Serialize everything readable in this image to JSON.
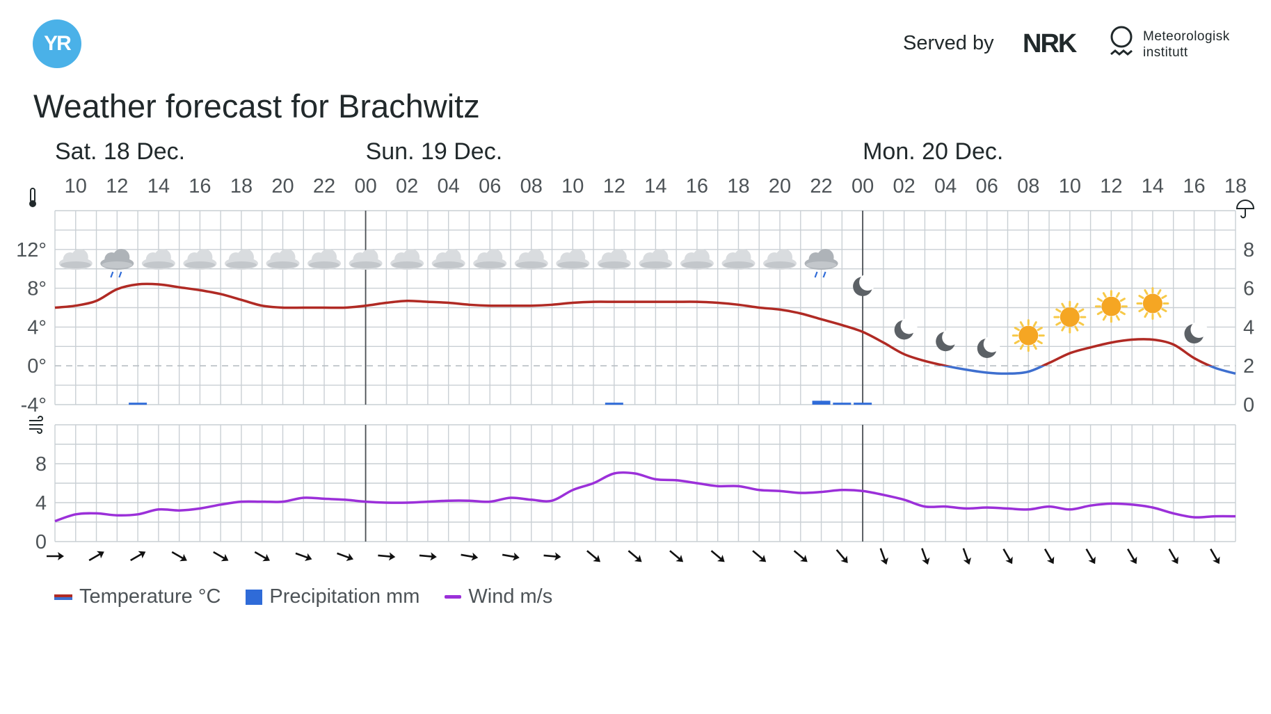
{
  "header": {
    "logo_text": "YR",
    "served_by": "Served by",
    "nrk_logo": "NRK",
    "met_logo": [
      "Meteorologisk",
      "institutt"
    ],
    "title": "Weather forecast for Brachwitz"
  },
  "chart_data": {
    "type": "line",
    "start_hour": 9,
    "end_hour": 66,
    "days": [
      {
        "label": "Sat. 18 Dec.",
        "hour": 9
      },
      {
        "label": "Sun. 19 Dec.",
        "hour": 24
      },
      {
        "label": "Mon. 20 Dec.",
        "hour": 48
      }
    ],
    "hour_ticks": [
      "10",
      "12",
      "14",
      "16",
      "18",
      "20",
      "22",
      "00",
      "02",
      "04",
      "06",
      "08",
      "10",
      "12",
      "14",
      "16",
      "18",
      "20",
      "22",
      "00",
      "02",
      "04",
      "06",
      "08",
      "10",
      "12",
      "14",
      "16",
      "18"
    ],
    "temperature": {
      "name": "Temperature °C",
      "ylim": [
        -4,
        16
      ],
      "yticks": [
        "12°",
        "8°",
        "4°",
        "0°",
        "-4°"
      ],
      "colors": {
        "above_zero": "#b02a24",
        "below_zero": "#3e6fcf"
      },
      "points": [
        [
          9,
          6.0
        ],
        [
          10,
          6.2
        ],
        [
          11,
          6.7
        ],
        [
          12,
          7.9
        ],
        [
          13,
          8.4
        ],
        [
          14,
          8.4
        ],
        [
          15,
          8.1
        ],
        [
          16,
          7.8
        ],
        [
          17,
          7.4
        ],
        [
          18,
          6.8
        ],
        [
          19,
          6.2
        ],
        [
          20,
          6.0
        ],
        [
          21,
          6.0
        ],
        [
          22,
          6.0
        ],
        [
          23,
          6.0
        ],
        [
          24,
          6.2
        ],
        [
          25,
          6.5
        ],
        [
          26,
          6.7
        ],
        [
          27,
          6.6
        ],
        [
          28,
          6.5
        ],
        [
          29,
          6.3
        ],
        [
          30,
          6.2
        ],
        [
          31,
          6.2
        ],
        [
          32,
          6.2
        ],
        [
          33,
          6.3
        ],
        [
          34,
          6.5
        ],
        [
          35,
          6.6
        ],
        [
          36,
          6.6
        ],
        [
          37,
          6.6
        ],
        [
          38,
          6.6
        ],
        [
          39,
          6.6
        ],
        [
          40,
          6.6
        ],
        [
          41,
          6.5
        ],
        [
          42,
          6.3
        ],
        [
          43,
          6.0
        ],
        [
          44,
          5.8
        ],
        [
          45,
          5.4
        ],
        [
          46,
          4.8
        ],
        [
          47,
          4.2
        ],
        [
          48,
          3.5
        ],
        [
          49,
          2.4
        ],
        [
          50,
          1.2
        ],
        [
          51,
          0.5
        ],
        [
          52,
          0.0
        ],
        [
          53,
          -0.4
        ],
        [
          54,
          -0.7
        ],
        [
          55,
          -0.8
        ],
        [
          56,
          -0.6
        ],
        [
          57,
          0.3
        ],
        [
          58,
          1.3
        ],
        [
          59,
          1.9
        ],
        [
          60,
          2.4
        ],
        [
          61,
          2.7
        ],
        [
          62,
          2.7
        ],
        [
          63,
          2.2
        ],
        [
          64,
          0.8
        ],
        [
          65,
          -0.2
        ],
        [
          66,
          -0.8
        ]
      ]
    },
    "precipitation": {
      "name": "Precipitation mm",
      "ylim": [
        0,
        10
      ],
      "yticks": [
        "8",
        "6",
        "4",
        "2",
        "0"
      ],
      "color": "#2f6bd8",
      "bars": [
        {
          "hour": 13,
          "amount": 0.1
        },
        {
          "hour": 36,
          "amount": 0.1
        },
        {
          "hour": 46,
          "amount": 0.2
        },
        {
          "hour": 47,
          "amount": 0.1
        },
        {
          "hour": 48,
          "amount": 0.1
        }
      ]
    },
    "wind": {
      "name": "Wind m/s",
      "ylim": [
        0,
        12
      ],
      "yticks": [
        "8",
        "4",
        "0"
      ],
      "color": "#9b30d9",
      "points": [
        [
          9,
          2.1
        ],
        [
          10,
          2.8
        ],
        [
          11,
          2.9
        ],
        [
          12,
          2.7
        ],
        [
          13,
          2.8
        ],
        [
          14,
          3.3
        ],
        [
          15,
          3.2
        ],
        [
          16,
          3.4
        ],
        [
          17,
          3.8
        ],
        [
          18,
          4.1
        ],
        [
          19,
          4.1
        ],
        [
          20,
          4.1
        ],
        [
          21,
          4.5
        ],
        [
          22,
          4.4
        ],
        [
          23,
          4.3
        ],
        [
          24,
          4.1
        ],
        [
          25,
          4.0
        ],
        [
          26,
          4.0
        ],
        [
          27,
          4.1
        ],
        [
          28,
          4.2
        ],
        [
          29,
          4.2
        ],
        [
          30,
          4.1
        ],
        [
          31,
          4.5
        ],
        [
          32,
          4.3
        ],
        [
          33,
          4.2
        ],
        [
          34,
          5.3
        ],
        [
          35,
          6.0
        ],
        [
          36,
          7.0
        ],
        [
          37,
          7.0
        ],
        [
          38,
          6.4
        ],
        [
          39,
          6.3
        ],
        [
          40,
          6.0
        ],
        [
          41,
          5.7
        ],
        [
          42,
          5.7
        ],
        [
          43,
          5.3
        ],
        [
          44,
          5.2
        ],
        [
          45,
          5.0
        ],
        [
          46,
          5.1
        ],
        [
          47,
          5.3
        ],
        [
          48,
          5.2
        ],
        [
          49,
          4.8
        ],
        [
          50,
          4.3
        ],
        [
          51,
          3.6
        ],
        [
          52,
          3.6
        ],
        [
          53,
          3.4
        ],
        [
          54,
          3.5
        ],
        [
          55,
          3.4
        ],
        [
          56,
          3.3
        ],
        [
          57,
          3.6
        ],
        [
          58,
          3.3
        ],
        [
          59,
          3.7
        ],
        [
          60,
          3.9
        ],
        [
          61,
          3.8
        ],
        [
          62,
          3.5
        ],
        [
          63,
          2.9
        ],
        [
          64,
          2.5
        ],
        [
          65,
          2.6
        ],
        [
          66,
          2.6
        ]
      ]
    },
    "wind_directions": [
      90,
      60,
      60,
      120,
      120,
      120,
      110,
      110,
      95,
      95,
      100,
      100,
      95,
      130,
      130,
      130,
      130,
      130,
      130,
      140,
      160,
      160,
      160,
      150,
      150,
      150,
      150,
      150,
      150
    ],
    "symbols": [
      {
        "hour": 10,
        "type": "cloud"
      },
      {
        "hour": 12,
        "type": "cloud-rain"
      },
      {
        "hour": 14,
        "type": "cloud"
      },
      {
        "hour": 16,
        "type": "cloud"
      },
      {
        "hour": 18,
        "type": "cloud"
      },
      {
        "hour": 20,
        "type": "cloud"
      },
      {
        "hour": 22,
        "type": "cloud"
      },
      {
        "hour": 24,
        "type": "cloud"
      },
      {
        "hour": 26,
        "type": "cloud"
      },
      {
        "hour": 28,
        "type": "cloud"
      },
      {
        "hour": 30,
        "type": "cloud"
      },
      {
        "hour": 32,
        "type": "cloud"
      },
      {
        "hour": 34,
        "type": "cloud"
      },
      {
        "hour": 36,
        "type": "cloud"
      },
      {
        "hour": 38,
        "type": "cloud"
      },
      {
        "hour": 40,
        "type": "cloud"
      },
      {
        "hour": 42,
        "type": "cloud"
      },
      {
        "hour": 44,
        "type": "cloud"
      },
      {
        "hour": 46,
        "type": "cloud-rain"
      },
      {
        "hour": 48,
        "type": "moon"
      },
      {
        "hour": 50,
        "type": "moon"
      },
      {
        "hour": 52,
        "type": "moon"
      },
      {
        "hour": 54,
        "type": "moon"
      },
      {
        "hour": 56,
        "type": "sun"
      },
      {
        "hour": 58,
        "type": "sun"
      },
      {
        "hour": 60,
        "type": "sun"
      },
      {
        "hour": 62,
        "type": "sun"
      },
      {
        "hour": 64,
        "type": "moon"
      }
    ],
    "colors": {
      "grid": "#c9cfd4",
      "day_separator": "#4a4f54",
      "text": "#21292b",
      "sun": "#f5a623",
      "cloud": "#d6d9dc",
      "rain": "#2f6bd8"
    },
    "icons": [
      "thermometer-icon",
      "umbrella-icon",
      "wind-icon"
    ]
  },
  "legend": [
    {
      "label": "Temperature °C",
      "key": "temp"
    },
    {
      "label": "Precipitation mm",
      "key": "precip"
    },
    {
      "label": "Wind m/s",
      "key": "wind"
    }
  ]
}
